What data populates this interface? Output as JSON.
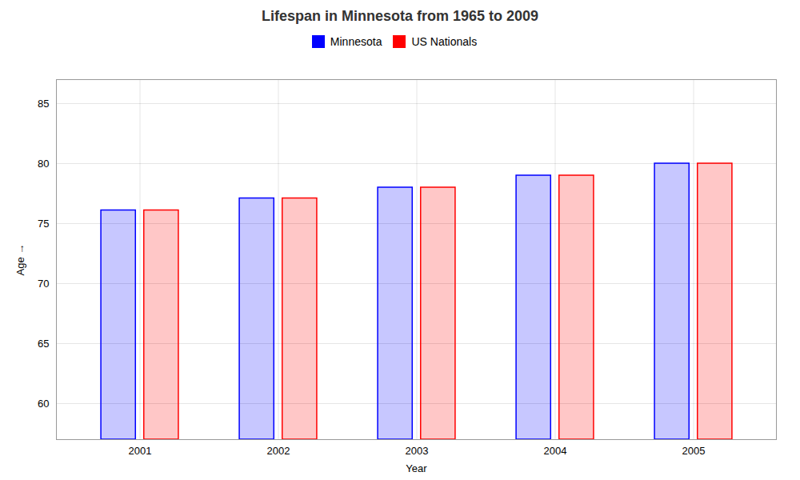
{
  "chart_data": {
    "type": "bar",
    "title": "Lifespan in Minnesota from 1965 to 2009",
    "xlabel": "Year",
    "ylabel": "Age",
    "categories": [
      "2001",
      "2002",
      "2003",
      "2004",
      "2005"
    ],
    "series": [
      {
        "name": "Minnesota",
        "color": "#0000ff",
        "values": [
          76.1,
          77.1,
          78.0,
          79.0,
          80.0
        ]
      },
      {
        "name": "US Nationals",
        "color": "#ff0000",
        "values": [
          76.1,
          77.1,
          78.0,
          79.0,
          80.0
        ]
      }
    ],
    "ylim": [
      57,
      87
    ],
    "yticks": [
      60,
      65,
      70,
      75,
      80,
      85
    ],
    "grid": true,
    "legend": "top"
  }
}
